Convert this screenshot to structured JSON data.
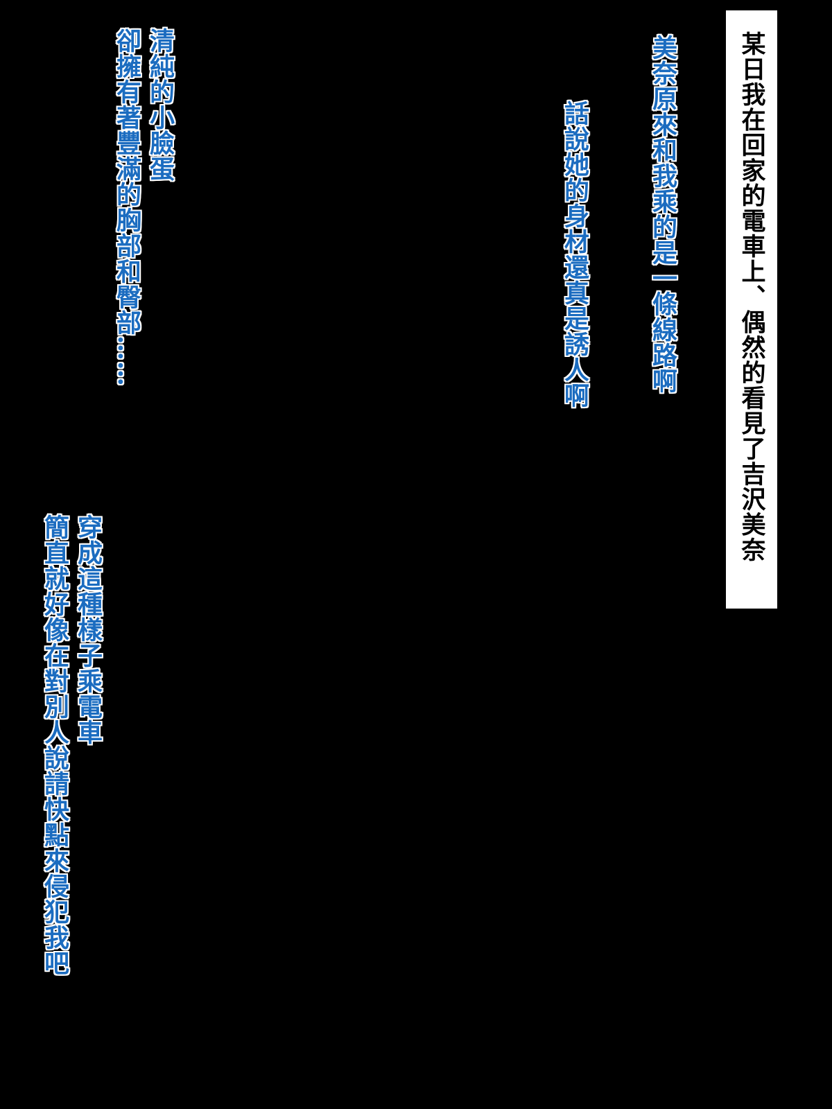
{
  "narration_box": "某日我在回家的電車上、偶然的看見了吉沢美奈",
  "lines": [
    "美奈原來和我乘的是一條線路啊",
    "話說她的身材還真是誘人啊",
    "清純的小臉蛋",
    "卻擁有著豐滿的胸部和臀部……",
    "穿成這種樣子乘電車",
    "簡直就好像在對別人說請快點來侵犯我吧"
  ],
  "colors": {
    "background": "#000000",
    "text": "#1b6cc0",
    "outline": "#ffffff",
    "box": "#ffffff"
  }
}
